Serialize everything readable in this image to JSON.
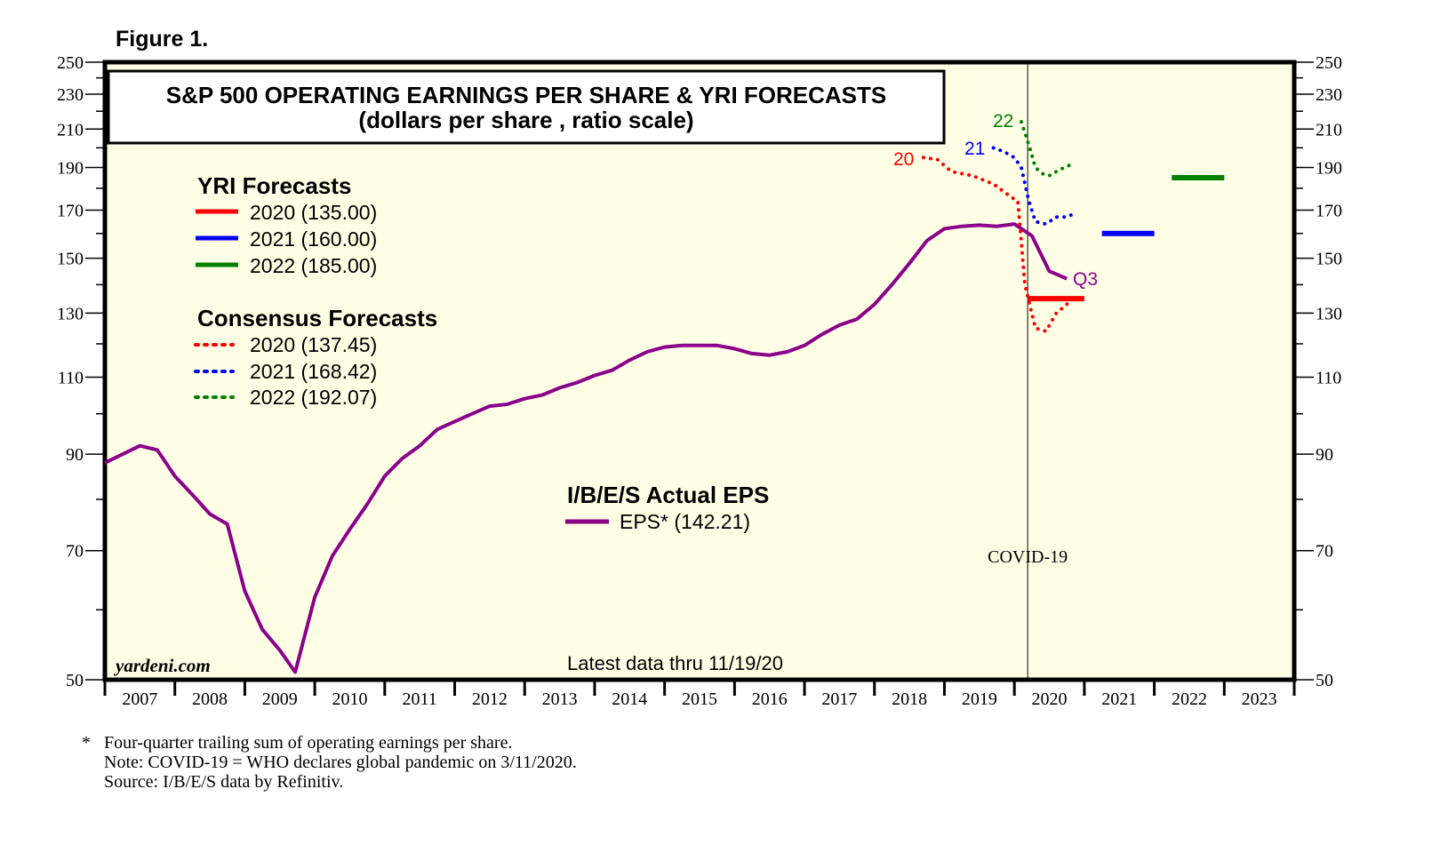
{
  "figure_label": "Figure 1.",
  "chart_data": {
    "type": "line",
    "title": "S&P 500 OPERATING EARNINGS PER SHARE & YRI FORECASTS",
    "subtitle": "(dollars per share , ratio scale)",
    "yscale": "log",
    "ylim": [
      50,
      250
    ],
    "xlim": [
      2007,
      2024
    ],
    "y_ticks": [
      50,
      70,
      90,
      110,
      130,
      150,
      170,
      190,
      210,
      230,
      250
    ],
    "y_minor_ticks": [
      60,
      80,
      100,
      120,
      140,
      160,
      180,
      200,
      220,
      240
    ],
    "x_tick_labels": [
      "2007",
      "2008",
      "2009",
      "2010",
      "2011",
      "2012",
      "2013",
      "2014",
      "2015",
      "2016",
      "2017",
      "2018",
      "2019",
      "2020",
      "2021",
      "2022",
      "2023"
    ],
    "colors": {
      "eps": "#8b008b",
      "y2020": "#ff0000",
      "y2021": "#0000ff",
      "y2022": "#008000",
      "background": "#ffffe6"
    },
    "legend": {
      "yri_title": "YRI Forecasts",
      "yri": [
        "2020 (135.00)",
        "2021 (160.00)",
        "2022 (185.00)"
      ],
      "consensus_title": "Consensus Forecasts",
      "consensus": [
        "2020 (137.45)",
        "2021 (168.42)",
        "2022 (192.07)"
      ],
      "actual_title": "I/B/E/S Actual EPS",
      "actual": "EPS* (142.21)"
    },
    "series": [
      {
        "name": "EPS* (142.21)",
        "style": "solid",
        "color": "#8b008b",
        "x": [
          2007.0,
          2007.5,
          2007.75,
          2008.0,
          2008.25,
          2008.5,
          2008.75,
          2009.0,
          2009.25,
          2009.5,
          2009.72,
          2010.0,
          2010.25,
          2010.5,
          2010.75,
          2011.0,
          2011.25,
          2011.5,
          2011.75,
          2012.0,
          2012.25,
          2012.5,
          2012.75,
          2013.0,
          2013.25,
          2013.5,
          2013.75,
          2014.0,
          2014.25,
          2014.5,
          2014.75,
          2015.0,
          2015.25,
          2015.5,
          2015.75,
          2016.0,
          2016.25,
          2016.5,
          2016.75,
          2017.0,
          2017.25,
          2017.5,
          2017.75,
          2018.0,
          2018.25,
          2018.5,
          2018.75,
          2019.0,
          2019.25,
          2019.5,
          2019.75,
          2020.0,
          2020.25,
          2020.5,
          2020.75
        ],
        "y": [
          88,
          92,
          91,
          85,
          81,
          77,
          75,
          63,
          57,
          54,
          51,
          62,
          69,
          74,
          79,
          85,
          89,
          92,
          96,
          98,
          100,
          102,
          102.5,
          104,
          105,
          107,
          108.5,
          110.5,
          112,
          115,
          117.5,
          119,
          119.5,
          119.5,
          119.5,
          118.5,
          117,
          116.5,
          117.5,
          119.5,
          123,
          126,
          128,
          133,
          140,
          148,
          157,
          162,
          163,
          163.5,
          163,
          164,
          159,
          145,
          142.21
        ]
      },
      {
        "name": "Consensus 2020",
        "style": "dotted",
        "color": "#ff0000",
        "x": [
          2018.7,
          2018.9,
          2019.1,
          2019.4,
          2019.7,
          2019.95,
          2020.05,
          2020.15,
          2020.3,
          2020.45,
          2020.6,
          2020.75,
          2020.85
        ],
        "y": [
          195,
          194,
          188,
          186,
          182,
          176,
          174,
          140,
          125,
          124,
          130,
          133,
          137.45
        ]
      },
      {
        "name": "Consensus 2021",
        "style": "dotted",
        "color": "#0000ff",
        "x": [
          2019.7,
          2019.85,
          2020.0,
          2020.1,
          2020.2,
          2020.3,
          2020.45,
          2020.6,
          2020.75,
          2020.85
        ],
        "y": [
          200,
          198,
          195,
          190,
          175,
          165,
          164,
          167,
          167,
          168.42
        ]
      },
      {
        "name": "Consensus 2022",
        "style": "dotted",
        "color": "#008000",
        "x": [
          2020.1,
          2020.15,
          2020.22,
          2020.3,
          2020.4,
          2020.5,
          2020.65,
          2020.85
        ],
        "y": [
          214,
          208,
          200,
          190,
          187,
          186,
          189,
          192.07
        ]
      },
      {
        "name": "YRI 2020",
        "style": "bar",
        "color": "#ff0000",
        "x": [
          2020.2,
          2021.0
        ],
        "y": [
          135,
          135
        ]
      },
      {
        "name": "YRI 2021",
        "style": "bar",
        "color": "#0000ff",
        "x": [
          2021.25,
          2022.0
        ],
        "y": [
          160,
          160
        ]
      },
      {
        "name": "YRI 2022",
        "style": "bar",
        "color": "#008000",
        "x": [
          2022.25,
          2023.0
        ],
        "y": [
          185,
          185
        ]
      }
    ],
    "series_labels": [
      {
        "text": "20",
        "color": "#ff0000"
      },
      {
        "text": "21",
        "color": "#0000ff"
      },
      {
        "text": "22",
        "color": "#008000"
      },
      {
        "text": "Q3",
        "color": "#8b008b"
      }
    ],
    "annotations": {
      "covid": "COVID-19",
      "covid_x": 2020.19,
      "latest": "Latest data thru 11/19/20",
      "source_brand": "yardeni.com"
    },
    "footnotes": [
      "*   Four-quarter trailing sum of operating earnings per share.",
      "Note: COVID-19 = WHO declares global pandemic on 3/11/2020.",
      "Source: I/B/E/S data by Refinitiv."
    ]
  }
}
